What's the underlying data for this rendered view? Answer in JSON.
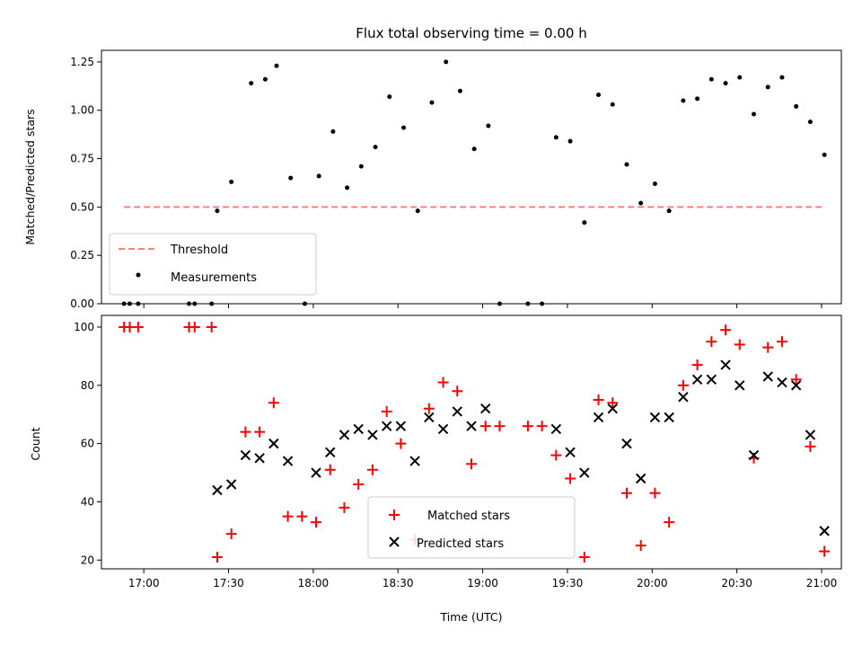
{
  "chart_data": [
    {
      "type": "scatter",
      "title": "Flux total observing time = 0.00 h",
      "xlabel": "",
      "ylabel": "Matched/Predicted stars",
      "ylim": [
        0,
        1.31
      ],
      "xlim_minutes": [
        "16:45",
        "21:07"
      ],
      "yticks": [
        "0.00",
        "0.25",
        "0.50",
        "0.75",
        "1.00",
        "1.25"
      ],
      "legend_position": "lower-left",
      "threshold": {
        "name": "Threshold",
        "value": 0.5,
        "x_range": [
          "16:53",
          "21:01"
        ],
        "color": "#ff7f7f",
        "style": "dashed"
      },
      "series": [
        {
          "name": "Measurements",
          "color": "#000000",
          "points": [
            [
              "16:53",
              0.0
            ],
            [
              "16:55",
              0.0
            ],
            [
              "16:58",
              0.0
            ],
            [
              "17:16",
              0.0
            ],
            [
              "17:18",
              0.0
            ],
            [
              "17:24",
              0.0
            ],
            [
              "17:26",
              0.48
            ],
            [
              "17:31",
              0.63
            ],
            [
              "17:38",
              1.14
            ],
            [
              "17:43",
              1.16
            ],
            [
              "17:47",
              1.23
            ],
            [
              "17:52",
              0.65
            ],
            [
              "17:57",
              0.0
            ],
            [
              "18:02",
              0.66
            ],
            [
              "18:07",
              0.89
            ],
            [
              "18:12",
              0.6
            ],
            [
              "18:17",
              0.71
            ],
            [
              "18:22",
              0.81
            ],
            [
              "18:27",
              1.07
            ],
            [
              "18:32",
              0.91
            ],
            [
              "18:37",
              0.48
            ],
            [
              "18:42",
              1.04
            ],
            [
              "18:47",
              1.25
            ],
            [
              "18:52",
              1.1
            ],
            [
              "18:57",
              0.8
            ],
            [
              "19:02",
              0.92
            ],
            [
              "19:06",
              0.0
            ],
            [
              "19:16",
              0.0
            ],
            [
              "19:21",
              0.0
            ],
            [
              "19:26",
              0.86
            ],
            [
              "19:31",
              0.84
            ],
            [
              "19:36",
              0.42
            ],
            [
              "19:41",
              1.08
            ],
            [
              "19:46",
              1.03
            ],
            [
              "19:51",
              0.72
            ],
            [
              "19:56",
              0.52
            ],
            [
              "20:01",
              0.62
            ],
            [
              "20:06",
              0.48
            ],
            [
              "20:11",
              1.05
            ],
            [
              "20:16",
              1.06
            ],
            [
              "20:21",
              1.16
            ],
            [
              "20:26",
              1.14
            ],
            [
              "20:31",
              1.17
            ],
            [
              "20:36",
              0.98
            ],
            [
              "20:41",
              1.12
            ],
            [
              "20:46",
              1.17
            ],
            [
              "20:51",
              1.02
            ],
            [
              "20:56",
              0.94
            ],
            [
              "21:01",
              0.77
            ]
          ]
        }
      ]
    },
    {
      "type": "scatter",
      "title": "",
      "xlabel": "Time (UTC)",
      "ylabel": "Count",
      "ylim": [
        17,
        104
      ],
      "xticks": [
        "17:00",
        "17:30",
        "18:00",
        "18:30",
        "19:00",
        "19:30",
        "20:00",
        "20:30",
        "21:00"
      ],
      "yticks": [
        "20",
        "40",
        "60",
        "80",
        "100"
      ],
      "legend_position": "lower-center",
      "series": [
        {
          "name": "Matched stars",
          "marker": "plus",
          "color": "#ff0000",
          "points": [
            [
              "16:53",
              100
            ],
            [
              "16:55",
              100
            ],
            [
              "16:58",
              100
            ],
            [
              "17:16",
              100
            ],
            [
              "17:18",
              100
            ],
            [
              "17:24",
              100
            ],
            [
              "17:26",
              21
            ],
            [
              "17:31",
              29
            ],
            [
              "17:36",
              64
            ],
            [
              "17:41",
              64
            ],
            [
              "17:46",
              74
            ],
            [
              "17:51",
              35
            ],
            [
              "17:56",
              35
            ],
            [
              "18:01",
              33
            ],
            [
              "18:06",
              51
            ],
            [
              "18:11",
              38
            ],
            [
              "18:16",
              46
            ],
            [
              "18:21",
              51
            ],
            [
              "18:26",
              71
            ],
            [
              "18:31",
              60
            ],
            [
              "18:36",
              27
            ],
            [
              "18:41",
              72
            ],
            [
              "18:46",
              81
            ],
            [
              "18:51",
              78
            ],
            [
              "18:56",
              53
            ],
            [
              "19:01",
              66
            ],
            [
              "19:06",
              66
            ],
            [
              "19:16",
              66
            ],
            [
              "19:21",
              66
            ],
            [
              "19:26",
              56
            ],
            [
              "19:31",
              48
            ],
            [
              "19:36",
              21
            ],
            [
              "19:41",
              75
            ],
            [
              "19:46",
              74
            ],
            [
              "19:51",
              43
            ],
            [
              "19:56",
              25
            ],
            [
              "20:01",
              43
            ],
            [
              "20:06",
              33
            ],
            [
              "20:11",
              80
            ],
            [
              "20:16",
              87
            ],
            [
              "20:21",
              95
            ],
            [
              "20:26",
              99
            ],
            [
              "20:31",
              94
            ],
            [
              "20:36",
              55
            ],
            [
              "20:41",
              93
            ],
            [
              "20:46",
              95
            ],
            [
              "20:51",
              82
            ],
            [
              "20:56",
              59
            ],
            [
              "21:01",
              23
            ]
          ]
        },
        {
          "name": "Predicted stars",
          "marker": "x",
          "color": "#000000",
          "points": [
            [
              "17:26",
              44
            ],
            [
              "17:31",
              46
            ],
            [
              "17:36",
              56
            ],
            [
              "17:41",
              55
            ],
            [
              "17:46",
              60
            ],
            [
              "17:51",
              54
            ],
            [
              "18:01",
              50
            ],
            [
              "18:06",
              57
            ],
            [
              "18:11",
              63
            ],
            [
              "18:16",
              65
            ],
            [
              "18:21",
              63
            ],
            [
              "18:26",
              66
            ],
            [
              "18:31",
              66
            ],
            [
              "18:36",
              54
            ],
            [
              "18:41",
              69
            ],
            [
              "18:46",
              65
            ],
            [
              "18:51",
              71
            ],
            [
              "18:56",
              66
            ],
            [
              "19:01",
              72
            ],
            [
              "19:26",
              65
            ],
            [
              "19:31",
              57
            ],
            [
              "19:36",
              50
            ],
            [
              "19:41",
              69
            ],
            [
              "19:46",
              72
            ],
            [
              "19:51",
              60
            ],
            [
              "19:56",
              48
            ],
            [
              "20:01",
              69
            ],
            [
              "20:06",
              69
            ],
            [
              "20:11",
              76
            ],
            [
              "20:16",
              82
            ],
            [
              "20:21",
              82
            ],
            [
              "20:26",
              87
            ],
            [
              "20:31",
              80
            ],
            [
              "20:36",
              56
            ],
            [
              "20:41",
              83
            ],
            [
              "20:46",
              81
            ],
            [
              "20:51",
              80
            ],
            [
              "20:56",
              63
            ],
            [
              "21:01",
              30
            ]
          ]
        }
      ]
    }
  ]
}
